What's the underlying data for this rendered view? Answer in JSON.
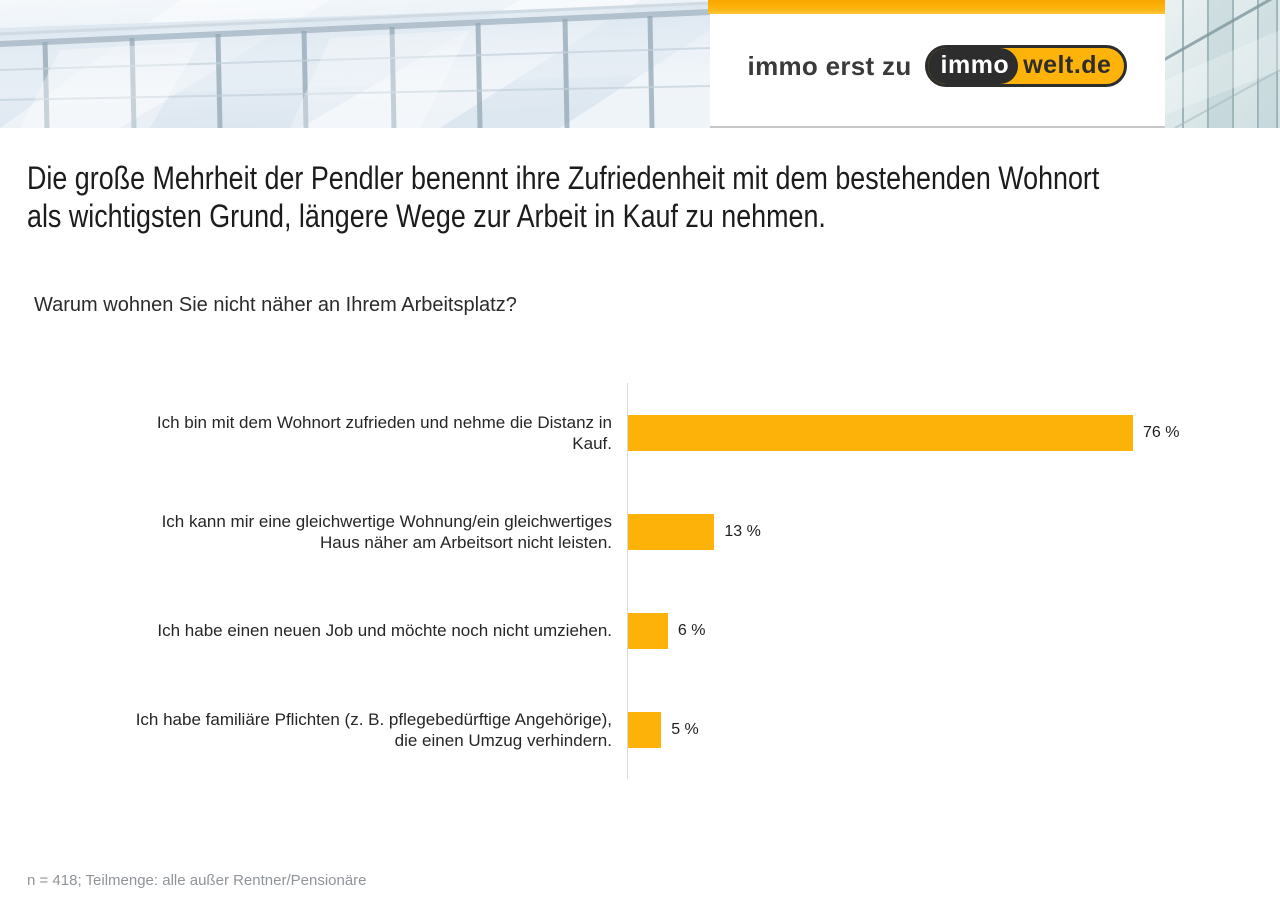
{
  "header": {
    "claim_text": "immo erst zu",
    "logo_left": "immo",
    "logo_right": "welt.de",
    "accent_color": "#FDB30A"
  },
  "title_lines": [
    "Die große Mehrheit der Pendler benennt ihre Zufriedenheit mit dem bestehenden Wohnort",
    "als wichtigsten Grund, längere Wege zur Arbeit in Kauf zu nehmen."
  ],
  "chart_data": {
    "type": "bar",
    "orientation": "horizontal",
    "title": "Warum wohnen Sie nicht näher an Ihrem Arbeitsplatz?",
    "categories": [
      "Ich bin mit dem Wohnort zufrieden und nehme die Distanz in Kauf.",
      "Ich kann mir eine gleichwertige Wohnung/ein gleichwertiges Haus näher am Arbeitsort nicht leisten.",
      "Ich habe einen neuen Job und möchte noch nicht umziehen.",
      "Ich habe familiäre Pflichten (z. B. pflegebedürftige Angehörige), die einen Umzug verhindern."
    ],
    "label_lines": [
      [
        "Ich bin mit dem Wohnort zufrieden und nehme die Distanz in",
        "Kauf."
      ],
      [
        "Ich kann mir eine gleichwertige Wohnung/ein gleichwertiges",
        "Haus näher am Arbeitsort nicht leisten."
      ],
      [
        "Ich habe einen neuen Job und möchte noch nicht umziehen."
      ],
      [
        "Ich habe familiäre Pflichten (z. B. pflegebedürftige Angehörige),",
        "die einen Umzug verhindern."
      ]
    ],
    "values": [
      76,
      13,
      6,
      5
    ],
    "value_labels": [
      "76 %",
      "13 %",
      "6 %",
      "5 %"
    ],
    "unit": "%",
    "xlim": [
      0,
      80
    ],
    "bar_color": "#FCB208",
    "grid": false,
    "legend": false
  },
  "footnote": "n = 418; Teilmenge: alle außer Rentner/Pensionäre"
}
